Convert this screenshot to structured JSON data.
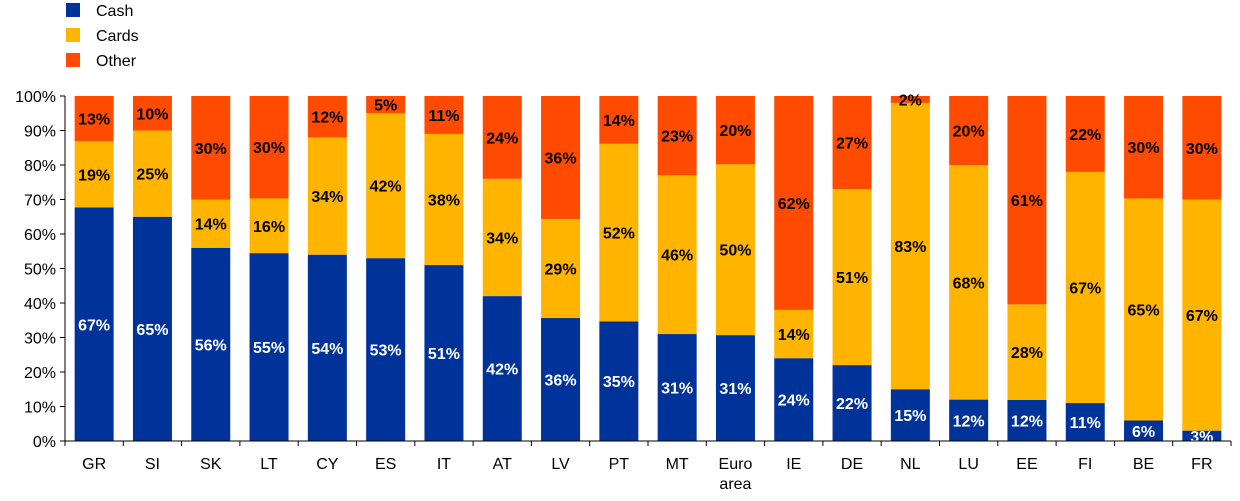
{
  "chart_data": {
    "type": "bar",
    "stacked": true,
    "percent_stacked": true,
    "categories": [
      "GR",
      "SI",
      "SK",
      "LT",
      "CY",
      "ES",
      "IT",
      "AT",
      "LV",
      "PT",
      "MT",
      "Euro area",
      "IE",
      "DE",
      "NL",
      "LU",
      "EE",
      "FI",
      "BE",
      "FR"
    ],
    "series": [
      {
        "name": "Cash",
        "color": "#003399",
        "label_color": "#ffffff",
        "values": [
          67,
          65,
          56,
          55,
          54,
          53,
          51,
          42,
          36,
          35,
          31,
          31,
          24,
          22,
          15,
          12,
          12,
          11,
          6,
          3
        ],
        "labels": [
          "67%",
          "65%",
          "56%",
          "55%",
          "54%",
          "53%",
          "51%",
          "42%",
          "36%",
          "35%",
          "31%",
          "31%",
          "24%",
          "22%",
          "15%",
          "12%",
          "12%",
          "11%",
          "6%",
          "3%"
        ]
      },
      {
        "name": "Cards",
        "color": "#FFB400",
        "label_color": "#000000",
        "values": [
          19,
          25,
          14,
          16,
          34,
          42,
          38,
          34,
          29,
          52,
          46,
          50,
          14,
          51,
          83,
          68,
          28,
          67,
          65,
          67
        ],
        "labels": [
          "19%",
          "25%",
          "14%",
          "16%",
          "34%",
          "42%",
          "38%",
          "34%",
          "29%",
          "52%",
          "46%",
          "50%",
          "14%",
          "51%",
          "83%",
          "68%",
          "28%",
          "67%",
          "65%",
          "67%"
        ]
      },
      {
        "name": "Other",
        "color": "#FF4B00",
        "label_color": "#000000",
        "values": [
          13,
          10,
          30,
          30,
          12,
          5,
          11,
          24,
          36,
          14,
          23,
          20,
          62,
          27,
          2,
          20,
          61,
          22,
          30,
          30
        ],
        "labels": [
          "13%",
          "10%",
          "30%",
          "30%",
          "12%",
          "5%",
          "11%",
          "24%",
          "36%",
          "14%",
          "23%",
          "20%",
          "62%",
          "27%",
          "2%",
          "20%",
          "61%",
          "22%",
          "30%",
          "30%"
        ]
      }
    ],
    "ylim": [
      0,
      100
    ],
    "yticks": [
      "0%",
      "10%",
      "20%",
      "30%",
      "40%",
      "50%",
      "60%",
      "70%",
      "80%",
      "90%",
      "100%"
    ],
    "legend": {
      "position": "top-left",
      "entries": [
        "Cash",
        "Cards",
        "Other"
      ]
    },
    "grid": false,
    "title": "",
    "xlabel": "",
    "ylabel": ""
  }
}
